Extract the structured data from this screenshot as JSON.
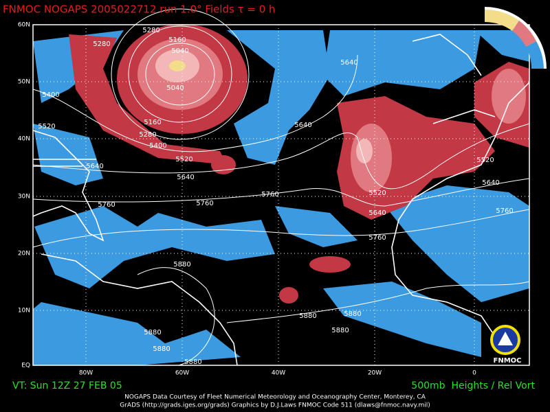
{
  "header": {
    "title": "FNMOC NOGAPS 2005022712 run 1.0° Fields τ = 0 h"
  },
  "lat_labels": [
    "60N",
    "50N",
    "40N",
    "30N",
    "20N",
    "10N",
    "EQ"
  ],
  "lon_labels": [
    "80W",
    "60W",
    "40W",
    "20W",
    "0"
  ],
  "contour_labels": [
    "5280",
    "5280",
    "5160",
    "5040",
    "5040",
    "5160",
    "5280",
    "5400",
    "5400",
    "5520",
    "5520",
    "5640",
    "5640",
    "5640",
    "5640",
    "5760",
    "5760",
    "5760",
    "5520",
    "5640",
    "5520",
    "5640",
    "5760",
    "5760",
    "5880",
    "5880",
    "5880",
    "5880",
    "5880",
    "5880",
    "5880"
  ],
  "footer": {
    "valid_time": "VT: Sun 12Z 27 FEB 05",
    "field": "500mb  Heights / Rel Vort",
    "credit": "NOGAPS Data Courtesy of Fleet Numerical Meteorology and Oceanography Center, Monterey, CA",
    "graphics": "GrADS (http://grads.iges.org/grads) Graphics by D.J.Laws FNMOC Code 511 (dlaws@fnmoc.navy.mil)",
    "logo": "FNMOC"
  }
}
